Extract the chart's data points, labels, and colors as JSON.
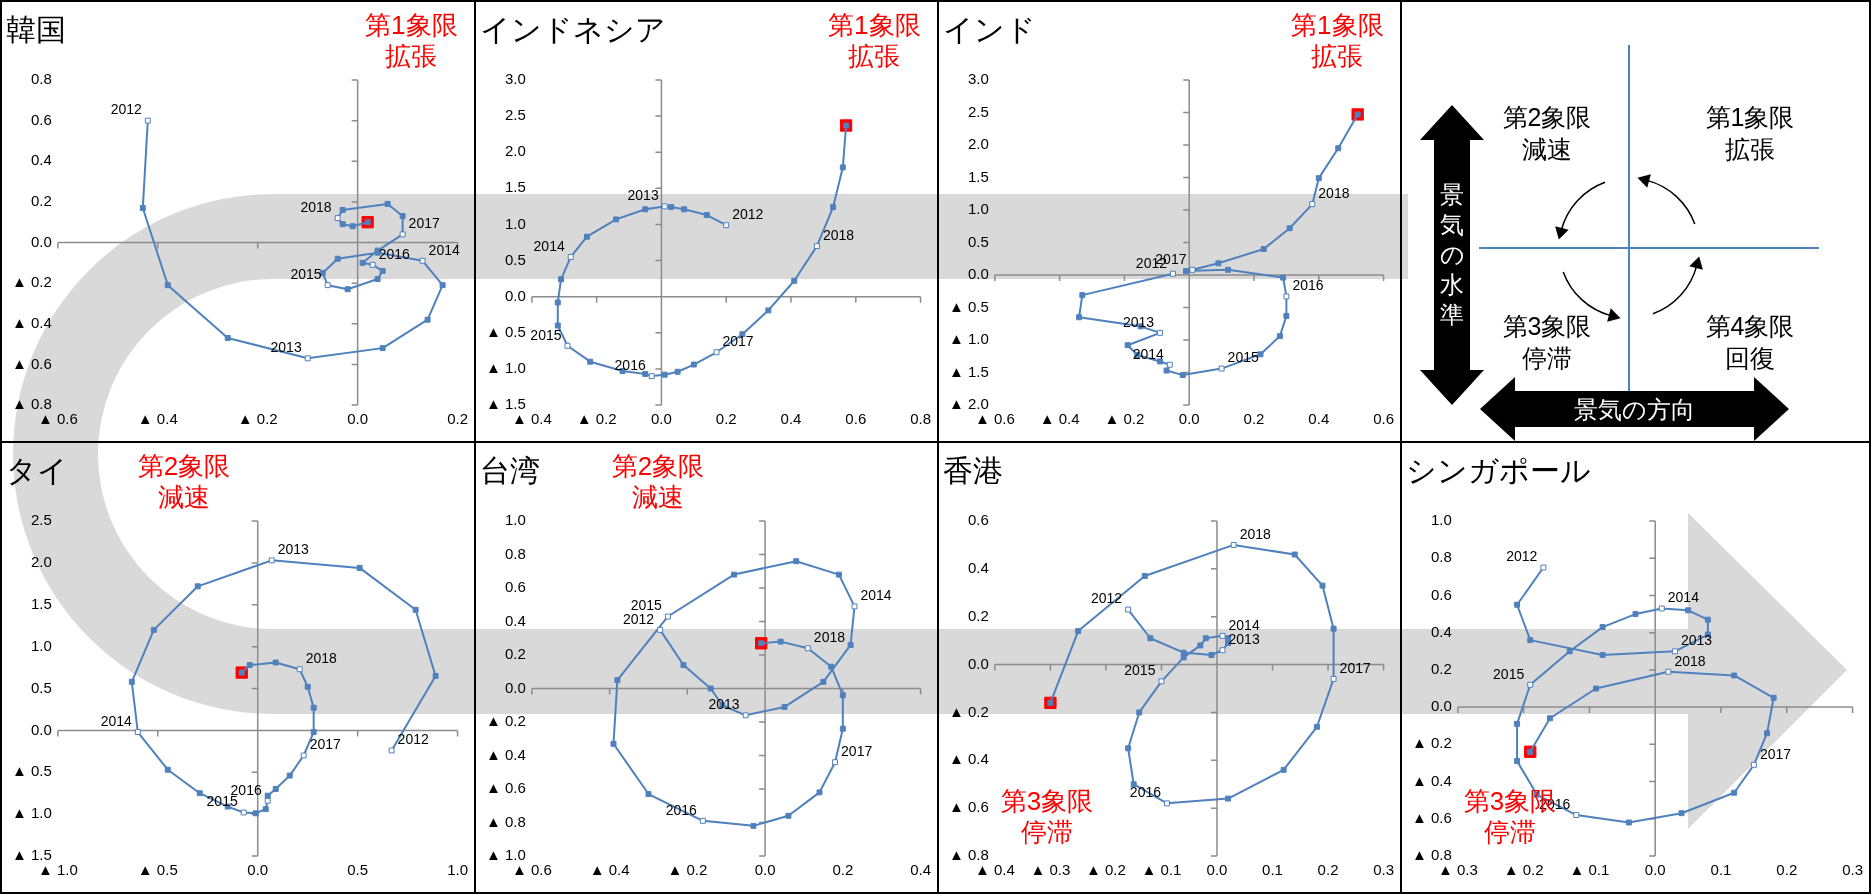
{
  "chart_data": [
    {
      "type": "line",
      "title": "韓国",
      "marker": "square",
      "xlim": [
        -0.6,
        0.2
      ],
      "ylim": [
        -0.8,
        0.8
      ],
      "xticks": [
        {
          "value": -0.6,
          "label": "▲ 0.6"
        },
        {
          "value": -0.4,
          "label": "▲ 0.4"
        },
        {
          "value": -0.2,
          "label": "▲ 0.2"
        },
        {
          "value": 0,
          "label": "0.0"
        },
        0.2
      ],
      "yticks": [
        {
          "value": -0.8,
          "label": "▲ 0.8"
        },
        {
          "value": -0.6,
          "label": "▲ 0.6"
        },
        {
          "value": -0.4,
          "label": "▲ 0.4"
        },
        {
          "value": -0.2,
          "label": "▲ 0.2"
        },
        {
          "value": 0,
          "label": "0.0"
        },
        0.2,
        0.4,
        0.6,
        0.8
      ],
      "series": [
        {
          "color": "#4f81bd",
          "x": [
            -0.42,
            -0.43,
            -0.38,
            -0.26,
            -0.1,
            0.05,
            0.14,
            0.17,
            0.13,
            0.04,
            -0.04,
            -0.07,
            -0.06,
            -0.02,
            0.04,
            0.05,
            0.03,
            0.01,
            0.04,
            0.09,
            0.09,
            0.06,
            -0.03,
            -0.04,
            -0.03,
            -0.01,
            0.02
          ],
          "values": [
            0.6,
            0.17,
            -0.21,
            -0.47,
            -0.57,
            -0.52,
            -0.38,
            -0.21,
            -0.09,
            -0.05,
            -0.08,
            -0.15,
            -0.21,
            -0.23,
            -0.18,
            -0.14,
            -0.11,
            -0.1,
            -0.04,
            0.04,
            0.13,
            0.19,
            0.16,
            0.12,
            0.09,
            0.08,
            0.1
          ]
        },
        {
          "type": "scatter",
          "color": "#ff0000",
          "x": [
            0.02
          ],
          "values": [
            0.1
          ]
        }
      ],
      "annotations": [
        "第1象限",
        "拡張",
        {
          "text": "2012",
          "x": -0.42,
          "y": 0.6
        },
        {
          "text": "2013",
          "x": -0.1,
          "y": -0.57
        },
        {
          "text": "2014",
          "x": 0.13,
          "y": -0.09
        },
        {
          "text": "2015",
          "x": -0.06,
          "y": -0.21
        },
        {
          "text": "2016",
          "x": 0.03,
          "y": -0.11
        },
        {
          "text": "2017",
          "x": 0.09,
          "y": 0.04
        },
        {
          "text": "2018",
          "x": -0.04,
          "y": 0.12
        }
      ]
    },
    {
      "type": "line",
      "title": "インドネシア",
      "marker": "square",
      "xlim": [
        -0.4,
        0.8
      ],
      "ylim": [
        -1.5,
        3.0
      ],
      "xticks": [
        {
          "value": -0.4,
          "label": "▲ 0.4"
        },
        {
          "value": -0.2,
          "label": "▲ 0.2"
        },
        {
          "value": 0,
          "label": "0.0"
        },
        0.2,
        0.4,
        0.6,
        0.8
      ],
      "yticks": [
        {
          "value": -1.5,
          "label": "▲ 1.5"
        },
        {
          "value": -1.0,
          "label": "▲ 1.0"
        },
        {
          "value": -0.5,
          "label": "▲ 0.5"
        },
        {
          "value": 0,
          "label": "0.0"
        },
        0.5,
        {
          "value": 1.0,
          "label": "1.0"
        },
        1.5,
        {
          "value": 2.0,
          "label": "2.0"
        },
        2.5,
        {
          "value": 3.0,
          "label": "3.0"
        }
      ],
      "series": [
        {
          "color": "#4f81bd",
          "x": [
            0.2,
            0.14,
            0.07,
            0.03,
            0.01,
            -0.05,
            -0.14,
            -0.23,
            -0.28,
            -0.31,
            -0.32,
            -0.32,
            -0.29,
            -0.22,
            -0.12,
            -0.05,
            -0.03,
            0.01,
            0.05,
            0.1,
            0.17,
            0.25,
            0.33,
            0.41,
            0.48,
            0.53,
            0.56,
            0.57
          ],
          "values": [
            0.99,
            1.13,
            1.21,
            1.24,
            1.25,
            1.21,
            1.07,
            0.83,
            0.55,
            0.24,
            -0.08,
            -0.4,
            -0.68,
            -0.9,
            -1.03,
            -1.07,
            -1.1,
            -1.08,
            -1.04,
            -0.94,
            -0.77,
            -0.52,
            -0.19,
            0.22,
            0.7,
            1.24,
            1.79,
            2.37
          ]
        },
        {
          "type": "scatter",
          "color": "#ff0000",
          "x": [
            0.57
          ],
          "values": [
            2.37
          ]
        }
      ],
      "annotations": [
        "第1象限",
        "拡張",
        {
          "text": "2012",
          "x": 0.2,
          "y": 0.99
        },
        {
          "text": "2013",
          "x": 0.01,
          "y": 1.25
        },
        {
          "text": "2014",
          "x": -0.28,
          "y": 0.55
        },
        {
          "text": "2015",
          "x": -0.29,
          "y": -0.68
        },
        {
          "text": "2016",
          "x": -0.03,
          "y": -1.1
        },
        {
          "text": "2017",
          "x": 0.17,
          "y": -0.77
        },
        {
          "text": "2018",
          "x": 0.48,
          "y": 0.7
        }
      ]
    },
    {
      "type": "line",
      "title": "インド",
      "marker": "square",
      "xlim": [
        -0.6,
        0.6
      ],
      "ylim": [
        -2.0,
        3.0
      ],
      "xticks": [
        {
          "value": -0.6,
          "label": "▲ 0.6"
        },
        {
          "value": -0.4,
          "label": "▲ 0.4"
        },
        {
          "value": -0.2,
          "label": "▲ 0.2"
        },
        {
          "value": 0,
          "label": "0.0"
        },
        0.2,
        0.4,
        0.6
      ],
      "yticks": [
        {
          "value": -2.0,
          "label": "▲ 2.0"
        },
        {
          "value": -1.5,
          "label": "▲ 1.5"
        },
        {
          "value": -1.0,
          "label": "▲ 1.0"
        },
        {
          "value": -0.5,
          "label": "▲ 0.5"
        },
        {
          "value": 0,
          "label": "0.0"
        },
        0.5,
        {
          "value": 1.0,
          "label": "1.0"
        },
        1.5,
        {
          "value": 2.0,
          "label": "2.0"
        },
        2.5,
        {
          "value": 3.0,
          "label": "3.0"
        }
      ],
      "series": [
        {
          "color": "#4f81bd",
          "x": [
            -0.05,
            -0.33,
            -0.34,
            -0.15,
            -0.09,
            -0.19,
            -0.16,
            -0.09,
            -0.06,
            -0.07,
            -0.02,
            0.1,
            0.22,
            0.28,
            0.3,
            0.3,
            0.29,
            0.12,
            -0.01,
            0.01,
            0.09,
            0.23,
            0.31,
            0.38,
            0.4,
            0.46,
            0.52
          ],
          "values": [
            0.02,
            -0.31,
            -0.65,
            -0.79,
            -0.89,
            -1.08,
            -1.23,
            -1.33,
            -1.38,
            -1.47,
            -1.54,
            -1.44,
            -1.22,
            -0.94,
            -0.63,
            -0.33,
            -0.04,
            0.08,
            0.06,
            0.08,
            0.18,
            0.4,
            0.72,
            1.09,
            1.49,
            1.95,
            2.47
          ]
        },
        {
          "type": "scatter",
          "color": "#ff0000",
          "x": [
            0.52
          ],
          "values": [
            2.47
          ]
        }
      ],
      "annotations": [
        "第1象限",
        "拡張",
        {
          "text": "2012",
          "x": -0.05,
          "y": 0.02
        },
        {
          "text": "2013",
          "x": -0.09,
          "y": -0.89
        },
        {
          "text": "2014",
          "x": -0.06,
          "y": -1.38
        },
        {
          "text": "2015",
          "x": 0.1,
          "y": -1.44
        },
        {
          "text": "2016",
          "x": 0.3,
          "y": -0.33
        },
        {
          "text": "2017",
          "x": 0.01,
          "y": 0.08
        },
        {
          "text": "2018",
          "x": 0.38,
          "y": 1.09
        }
      ]
    },
    {
      "type": "other",
      "annotations": [
        "第2象限",
        "減速",
        "第1象限",
        "拡張",
        "第3象限",
        "停滞",
        "第4象限",
        "回復",
        "景気の水準",
        "景気の方向"
      ]
    },
    {
      "type": "line",
      "title": "タイ",
      "marker": "square",
      "xlim": [
        -1.0,
        1.0
      ],
      "ylim": [
        -1.5,
        2.5
      ],
      "xticks": [
        {
          "value": -1.0,
          "label": "▲ 1.0"
        },
        {
          "value": -0.5,
          "label": "▲ 0.5"
        },
        {
          "value": 0,
          "label": "0.0"
        },
        0.5,
        {
          "value": 1.0,
          "label": "1.0"
        }
      ],
      "yticks": [
        {
          "value": -1.5,
          "label": "▲ 1.5"
        },
        {
          "value": -1.0,
          "label": "▲ 1.0"
        },
        {
          "value": -0.5,
          "label": "▲ 0.5"
        },
        {
          "value": 0,
          "label": "0.0"
        },
        0.5,
        {
          "value": 1.0,
          "label": "1.0"
        },
        1.5,
        {
          "value": 2.0,
          "label": "2.0"
        },
        2.5
      ],
      "series": [
        {
          "color": "#4f81bd",
          "x": [
            0.67,
            0.89,
            0.79,
            0.51,
            0.07,
            -0.3,
            -0.52,
            -0.63,
            -0.6,
            -0.45,
            -0.29,
            -0.15,
            -0.07,
            -0.01,
            0.04,
            0.05,
            0.05,
            0.09,
            0.16,
            0.23,
            0.28,
            0.28,
            0.25,
            0.21,
            0.09,
            -0.04,
            -0.08
          ],
          "values": [
            -0.24,
            0.65,
            1.44,
            1.94,
            2.03,
            1.72,
            1.2,
            0.58,
            -0.02,
            -0.47,
            -0.75,
            -0.91,
            -0.98,
            -0.99,
            -0.94,
            -0.84,
            -0.78,
            -0.7,
            -0.54,
            -0.3,
            -0.02,
            0.27,
            0.52,
            0.73,
            0.81,
            0.78,
            0.69
          ]
        },
        {
          "type": "scatter",
          "color": "#ff0000",
          "x": [
            -0.08
          ],
          "values": [
            0.69
          ]
        }
      ],
      "annotations": [
        "第2象限",
        "減速",
        {
          "text": "2012",
          "x": 0.67,
          "y": -0.24
        },
        {
          "text": "2013",
          "x": 0.07,
          "y": 2.03
        },
        {
          "text": "2014",
          "x": -0.6,
          "y": -0.02
        },
        {
          "text": "2015",
          "x": -0.07,
          "y": -0.98
        },
        {
          "text": "2016",
          "x": 0.05,
          "y": -0.84
        },
        {
          "text": "2017",
          "x": 0.23,
          "y": -0.3
        },
        {
          "text": "2018",
          "x": 0.21,
          "y": 0.73
        }
      ]
    },
    {
      "type": "line",
      "title": "台湾",
      "marker": "square",
      "xlim": [
        -0.6,
        0.4
      ],
      "ylim": [
        -1.0,
        1.0
      ],
      "xticks": [
        {
          "value": -0.6,
          "label": "▲ 0.6"
        },
        {
          "value": -0.4,
          "label": "▲ 0.4"
        },
        {
          "value": -0.2,
          "label": "▲ 0.2"
        },
        {
          "value": 0,
          "label": "0.0"
        },
        0.2,
        0.4
      ],
      "yticks": [
        {
          "value": -1.0,
          "label": "▲ 1.0"
        },
        {
          "value": -0.8,
          "label": "▲ 0.8"
        },
        {
          "value": -0.6,
          "label": "▲ 0.6"
        },
        {
          "value": -0.4,
          "label": "▲ 0.4"
        },
        {
          "value": -0.2,
          "label": "▲ 0.2"
        },
        {
          "value": 0,
          "label": "0.0"
        },
        0.2,
        0.4,
        0.6,
        0.8,
        {
          "value": 1.0,
          "label": "1.0"
        }
      ],
      "series": [
        {
          "color": "#4f81bd",
          "x": [
            -0.27,
            -0.21,
            -0.14,
            -0.11,
            -0.05,
            0.05,
            0.15,
            0.22,
            0.23,
            0.19,
            0.08,
            -0.08,
            -0.25,
            -0.38,
            -0.39,
            -0.3,
            -0.16,
            -0.03,
            0.06,
            0.14,
            0.18,
            0.2,
            0.2,
            0.17,
            0.11,
            0.04,
            -0.01
          ],
          "values": [
            0.35,
            0.14,
            0.0,
            -0.1,
            -0.16,
            -0.11,
            0.04,
            0.26,
            0.49,
            0.68,
            0.76,
            0.68,
            0.43,
            0.05,
            -0.33,
            -0.63,
            -0.79,
            -0.82,
            -0.76,
            -0.62,
            -0.44,
            -0.24,
            -0.04,
            0.13,
            0.24,
            0.28,
            0.27
          ]
        },
        {
          "type": "scatter",
          "color": "#ff0000",
          "x": [
            -0.01
          ],
          "values": [
            0.27
          ]
        }
      ],
      "annotations": [
        "第2象限",
        "減速",
        {
          "text": "2012",
          "x": -0.27,
          "y": 0.35
        },
        {
          "text": "2013",
          "x": -0.05,
          "y": -0.16
        },
        {
          "text": "2014",
          "x": 0.23,
          "y": 0.49
        },
        {
          "text": "2015",
          "x": -0.25,
          "y": 0.43
        },
        {
          "text": "2016",
          "x": -0.16,
          "y": -0.79
        },
        {
          "text": "2017",
          "x": 0.18,
          "y": -0.44
        },
        {
          "text": "2018",
          "x": 0.11,
          "y": 0.24
        }
      ]
    },
    {
      "type": "line",
      "title": "香港",
      "marker": "square",
      "xlim": [
        -0.4,
        0.3
      ],
      "ylim": [
        -0.8,
        0.6
      ],
      "xticks": [
        {
          "value": -0.4,
          "label": "▲ 0.4"
        },
        {
          "value": -0.3,
          "label": "▲ 0.3"
        },
        {
          "value": -0.2,
          "label": "▲ 0.2"
        },
        {
          "value": -0.1,
          "label": "▲ 0.1"
        },
        {
          "value": 0,
          "label": "0.0"
        },
        0.1,
        0.2,
        0.3
      ],
      "yticks": [
        {
          "value": -0.8,
          "label": "▲ 0.8"
        },
        {
          "value": -0.6,
          "label": "▲ 0.6"
        },
        {
          "value": -0.4,
          "label": "▲ 0.4"
        },
        {
          "value": -0.2,
          "label": "▲ 0.2"
        },
        {
          "value": 0,
          "label": "0.0"
        },
        0.2,
        0.4,
        0.6
      ],
      "series": [
        {
          "color": "#4f81bd",
          "x": [
            -0.16,
            -0.12,
            -0.06,
            -0.01,
            0.01,
            0.02,
            0.02,
            0.01,
            -0.02,
            -0.03,
            -0.06,
            -0.1,
            -0.14,
            -0.16,
            -0.15,
            -0.09,
            0.02,
            0.12,
            0.18,
            0.21,
            0.21,
            0.19,
            0.14,
            0.03,
            -0.13,
            -0.25,
            -0.3
          ],
          "values": [
            0.23,
            0.11,
            0.05,
            0.04,
            0.06,
            0.09,
            0.11,
            0.12,
            0.11,
            0.08,
            0.03,
            -0.07,
            -0.2,
            -0.35,
            -0.5,
            -0.58,
            -0.56,
            -0.44,
            -0.26,
            -0.06,
            0.15,
            0.33,
            0.46,
            0.5,
            0.37,
            0.14,
            -0.16
          ]
        },
        {
          "type": "scatter",
          "color": "#ff0000",
          "x": [
            -0.3
          ],
          "values": [
            -0.16
          ]
        }
      ],
      "annotations": [
        "第3象限",
        "停滞",
        {
          "text": "2012",
          "x": -0.16,
          "y": 0.23
        },
        {
          "text": "2013",
          "x": 0.01,
          "y": 0.06
        },
        {
          "text": "2014",
          "x": 0.01,
          "y": 0.12
        },
        {
          "text": "2015",
          "x": -0.1,
          "y": -0.07
        },
        {
          "text": "2016",
          "x": -0.09,
          "y": -0.58
        },
        {
          "text": "2017",
          "x": 0.21,
          "y": -0.06
        },
        {
          "text": "2018",
          "x": 0.03,
          "y": 0.5
        }
      ]
    },
    {
      "type": "line",
      "title": "シンガポール",
      "marker": "square",
      "xlim": [
        -0.3,
        0.3
      ],
      "ylim": [
        -0.8,
        1.0
      ],
      "xticks": [
        {
          "value": -0.3,
          "label": "▲ 0.3"
        },
        {
          "value": -0.2,
          "label": "▲ 0.2"
        },
        {
          "value": -0.1,
          "label": "▲ 0.1"
        },
        {
          "value": 0,
          "label": "0.0"
        },
        0.1,
        0.2,
        0.3
      ],
      "yticks": [
        {
          "value": -0.8,
          "label": "▲ 0.8"
        },
        {
          "value": -0.6,
          "label": "▲ 0.6"
        },
        {
          "value": -0.4,
          "label": "▲ 0.4"
        },
        {
          "value": -0.2,
          "label": "▲ 0.2"
        },
        {
          "value": 0,
          "label": "0.0"
        },
        0.2,
        0.4,
        0.6,
        0.8,
        {
          "value": 1.0,
          "label": "1.0"
        }
      ],
      "series": [
        {
          "color": "#4f81bd",
          "x": [
            -0.17,
            -0.21,
            -0.19,
            -0.08,
            0.03,
            0.08,
            0.08,
            0.05,
            0.01,
            -0.03,
            -0.08,
            -0.13,
            -0.19,
            -0.21,
            -0.21,
            -0.18,
            -0.12,
            -0.04,
            0.04,
            0.12,
            0.15,
            0.17,
            0.18,
            0.12,
            0.02,
            -0.09,
            -0.16,
            -0.19
          ],
          "values": [
            0.75,
            0.55,
            0.36,
            0.28,
            0.3,
            0.39,
            0.47,
            0.52,
            0.53,
            0.5,
            0.43,
            0.3,
            0.12,
            -0.09,
            -0.29,
            -0.47,
            -0.58,
            -0.62,
            -0.57,
            -0.46,
            -0.31,
            -0.14,
            0.05,
            0.17,
            0.19,
            0.1,
            -0.06,
            -0.24
          ]
        },
        {
          "type": "scatter",
          "color": "#ff0000",
          "x": [
            -0.19
          ],
          "values": [
            -0.24
          ]
        }
      ],
      "annotations": [
        "第3象限",
        "停滞",
        {
          "text": "2012",
          "x": -0.17,
          "y": 0.75
        },
        {
          "text": "2013",
          "x": 0.03,
          "y": 0.3
        },
        {
          "text": "2014",
          "x": 0.01,
          "y": 0.53
        },
        {
          "text": "2015",
          "x": -0.19,
          "y": 0.12
        },
        {
          "text": "2016",
          "x": -0.12,
          "y": -0.58
        },
        {
          "text": "2017",
          "x": 0.15,
          "y": -0.31
        },
        {
          "text": "2018",
          "x": 0.02,
          "y": 0.19
        }
      ]
    }
  ]
}
